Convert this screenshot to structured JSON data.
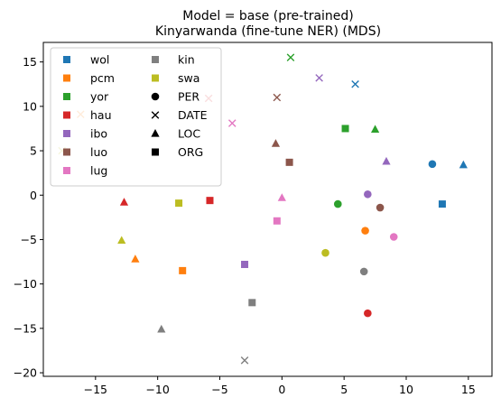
{
  "chart_data": {
    "type": "scatter",
    "title_lines": [
      "Model = base (pre-trained)",
      "Kinyarwanda (fine-tune NER) (MDS)"
    ],
    "xlabel": "",
    "ylabel": "",
    "xlim": [
      -19.2,
      16.9
    ],
    "ylim": [
      -20.4,
      17.2
    ],
    "xticks": [
      -15,
      -10,
      -5,
      0,
      5,
      10,
      15
    ],
    "yticks": [
      -20,
      -15,
      -10,
      -5,
      0,
      5,
      10,
      15
    ],
    "xtick_labels": [
      "−15",
      "−10",
      "−5",
      "0",
      "5",
      "10",
      "15"
    ],
    "ytick_labels": [
      "−20",
      "−15",
      "−10",
      "−5",
      "0",
      "5",
      "10",
      "15"
    ],
    "grid": false,
    "legend_placement": "top-left",
    "languages": [
      {
        "name": "wol",
        "color": "#1f77b4"
      },
      {
        "name": "pcm",
        "color": "#ff7f0e"
      },
      {
        "name": "yor",
        "color": "#2ca02c"
      },
      {
        "name": "hau",
        "color": "#d62728"
      },
      {
        "name": "ibo",
        "color": "#9467bd"
      },
      {
        "name": "luo",
        "color": "#8c564b"
      },
      {
        "name": "lug",
        "color": "#e377c2"
      },
      {
        "name": "kin",
        "color": "#7f7f7f"
      },
      {
        "name": "swa",
        "color": "#bcbd22"
      }
    ],
    "entity_types": [
      {
        "name": "PER",
        "marker": "circle"
      },
      {
        "name": "DATE",
        "marker": "x"
      },
      {
        "name": "LOC",
        "marker": "triangle"
      },
      {
        "name": "ORG",
        "marker": "square"
      }
    ],
    "points": [
      {
        "lang": "wol",
        "type": "PER",
        "x": 12.1,
        "y": 3.5
      },
      {
        "lang": "wol",
        "type": "DATE",
        "x": 5.9,
        "y": 12.5
      },
      {
        "lang": "wol",
        "type": "LOC",
        "x": 14.6,
        "y": 3.4
      },
      {
        "lang": "wol",
        "type": "ORG",
        "x": 12.9,
        "y": -1.0
      },
      {
        "lang": "pcm",
        "type": "PER",
        "x": 6.7,
        "y": -4.0
      },
      {
        "lang": "pcm",
        "type": "DATE",
        "x": -16.2,
        "y": 9.1
      },
      {
        "lang": "pcm",
        "type": "LOC",
        "x": -11.8,
        "y": -7.2
      },
      {
        "lang": "pcm",
        "type": "ORG",
        "x": -8.0,
        "y": -8.5
      },
      {
        "lang": "yor",
        "type": "PER",
        "x": 4.5,
        "y": -1.0
      },
      {
        "lang": "yor",
        "type": "DATE",
        "x": 0.7,
        "y": 15.5
      },
      {
        "lang": "yor",
        "type": "LOC",
        "x": 7.5,
        "y": 7.4
      },
      {
        "lang": "yor",
        "type": "ORG",
        "x": 5.1,
        "y": 7.5
      },
      {
        "lang": "hau",
        "type": "PER",
        "x": 6.9,
        "y": -13.3
      },
      {
        "lang": "hau",
        "type": "DATE",
        "x": -5.9,
        "y": 10.9
      },
      {
        "lang": "hau",
        "type": "LOC",
        "x": -12.7,
        "y": -0.8
      },
      {
        "lang": "hau",
        "type": "ORG",
        "x": -5.8,
        "y": -0.6
      },
      {
        "lang": "ibo",
        "type": "PER",
        "x": 6.9,
        "y": 0.1
      },
      {
        "lang": "ibo",
        "type": "DATE",
        "x": 3.0,
        "y": 13.2
      },
      {
        "lang": "ibo",
        "type": "LOC",
        "x": 8.4,
        "y": 3.8
      },
      {
        "lang": "ibo",
        "type": "ORG",
        "x": -3.0,
        "y": -7.8
      },
      {
        "lang": "luo",
        "type": "PER",
        "x": 7.9,
        "y": -1.4
      },
      {
        "lang": "luo",
        "type": "DATE",
        "x": -0.4,
        "y": 11.0
      },
      {
        "lang": "luo",
        "type": "LOC",
        "x": -0.5,
        "y": 5.8
      },
      {
        "lang": "luo",
        "type": "ORG",
        "x": 0.6,
        "y": 3.7
      },
      {
        "lang": "lug",
        "type": "PER",
        "x": 9.0,
        "y": -4.7
      },
      {
        "lang": "lug",
        "type": "DATE",
        "x": -4.0,
        "y": 8.1
      },
      {
        "lang": "lug",
        "type": "LOC",
        "x": 0.0,
        "y": -0.3
      },
      {
        "lang": "lug",
        "type": "ORG",
        "x": -0.4,
        "y": -2.9
      },
      {
        "lang": "kin",
        "type": "PER",
        "x": 6.6,
        "y": -8.6
      },
      {
        "lang": "kin",
        "type": "DATE",
        "x": -3.0,
        "y": -18.6
      },
      {
        "lang": "kin",
        "type": "LOC",
        "x": -9.7,
        "y": -15.1
      },
      {
        "lang": "kin",
        "type": "ORG",
        "x": -2.4,
        "y": -12.1
      },
      {
        "lang": "swa",
        "type": "PER",
        "x": 3.5,
        "y": -6.5
      },
      {
        "lang": "swa",
        "type": "DATE",
        "x": -17.7,
        "y": 5.0
      },
      {
        "lang": "swa",
        "type": "LOC",
        "x": -12.9,
        "y": -5.1
      },
      {
        "lang": "swa",
        "type": "ORG",
        "x": -8.3,
        "y": -0.9
      }
    ]
  }
}
